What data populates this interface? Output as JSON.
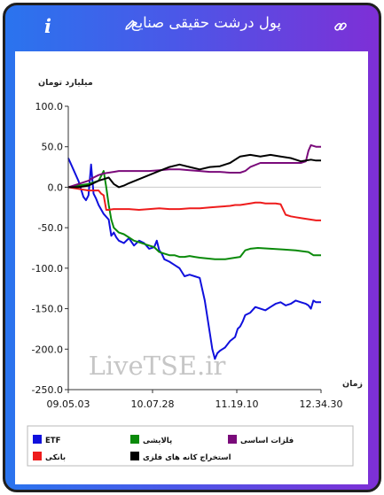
{
  "header": {
    "title": "پول درشت حقیقی صنایع",
    "info_glyph": "i",
    "edit_icon": "pencil-icon",
    "link_icon": "link-icon"
  },
  "chart_data": {
    "type": "line",
    "ylabel": "میلیارد تومان",
    "xlabel": "زمان",
    "ylim": [
      -250,
      100
    ],
    "yticks": [
      100.0,
      50.0,
      0.0,
      -50.0,
      -100.0,
      -150.0,
      -200.0,
      -250.0
    ],
    "ytick_labels": [
      "100.0",
      "50.0",
      "0.0",
      "-50.0",
      "-100.0",
      "-150.0",
      "-200.0",
      "-250.0"
    ],
    "xlim": [
      0,
      100
    ],
    "x_tick_labels": [
      "09.05.03",
      "10.07.28",
      "11.19.10",
      "12.34.30"
    ],
    "grid": false,
    "legend_position": "bottom",
    "watermark": "LiveTSE.ir",
    "series": [
      {
        "name": "ETF",
        "color": "#1010dd",
        "x": [
          0,
          2,
          4,
          6,
          7,
          8,
          9,
          10,
          11,
          12,
          14,
          16,
          17,
          18,
          19,
          20,
          22,
          24,
          26,
          28,
          30,
          32,
          34,
          35,
          36,
          37,
          38,
          40,
          42,
          44,
          46,
          48,
          50,
          52,
          54,
          56,
          57,
          58,
          59,
          60,
          61,
          62,
          64,
          66,
          67,
          68,
          69,
          70,
          72,
          74,
          76,
          78,
          80,
          82,
          84,
          86,
          88,
          90,
          92,
          94,
          95,
          96,
          97,
          98,
          100
        ],
        "y": [
          36,
          22,
          8,
          -12,
          -16,
          -10,
          28,
          -8,
          -14,
          -22,
          -33,
          -40,
          -60,
          -56,
          -62,
          -66,
          -69,
          -63,
          -72,
          -66,
          -69,
          -76,
          -74,
          -66,
          -78,
          -82,
          -89,
          -92,
          -96,
          -100,
          -110,
          -108,
          -110,
          -112,
          -140,
          -180,
          -200,
          -212,
          -205,
          -202,
          -200,
          -198,
          -190,
          -185,
          -175,
          -172,
          -166,
          -158,
          -155,
          -148,
          -150,
          -152,
          -148,
          -144,
          -142,
          -146,
          -144,
          -140,
          -142,
          -144,
          -146,
          -150,
          -140,
          -142,
          -142
        ]
      },
      {
        "name": "پالایشی",
        "color": "#0a8a0a",
        "x": [
          0,
          4,
          8,
          12,
          13,
          14,
          15,
          16,
          17,
          18,
          20,
          22,
          24,
          26,
          28,
          30,
          32,
          34,
          36,
          38,
          40,
          42,
          44,
          46,
          48,
          50,
          52,
          55,
          58,
          60,
          62,
          64,
          66,
          68,
          70,
          72,
          75,
          80,
          85,
          90,
          95,
          97,
          100
        ],
        "y": [
          0,
          2,
          4,
          8,
          14,
          20,
          0,
          -22,
          -40,
          -50,
          -56,
          -58,
          -62,
          -66,
          -68,
          -70,
          -72,
          -74,
          -80,
          -82,
          -84,
          -84,
          -86,
          -86,
          -85,
          -86,
          -87,
          -88,
          -89,
          -89,
          -89,
          -88,
          -87,
          -86,
          -78,
          -76,
          -75,
          -76,
          -77,
          -78,
          -80,
          -84,
          -84
        ]
      },
      {
        "name": "فلزات اساسی",
        "color": "#7a0a7a",
        "x": [
          0,
          4,
          8,
          10,
          12,
          14,
          16,
          18,
          20,
          24,
          28,
          32,
          36,
          40,
          44,
          48,
          52,
          56,
          60,
          64,
          68,
          70,
          72,
          76,
          80,
          84,
          88,
          92,
          94,
          95,
          96,
          98,
          100
        ],
        "y": [
          0,
          4,
          8,
          12,
          15,
          17,
          18,
          19,
          20,
          20,
          20,
          20,
          21,
          22,
          22,
          21,
          20,
          19,
          19,
          18,
          18,
          20,
          25,
          30,
          30,
          30,
          30,
          30,
          32,
          45,
          52,
          50,
          50
        ]
      },
      {
        "name": "بانکی",
        "color": "#ee1c1c",
        "x": [
          0,
          4,
          8,
          12,
          13,
          14,
          15,
          16,
          18,
          20,
          24,
          28,
          32,
          36,
          40,
          44,
          48,
          52,
          56,
          60,
          64,
          66,
          68,
          70,
          72,
          74,
          76,
          78,
          80,
          82,
          84,
          86,
          88,
          90,
          92,
          94,
          96,
          98,
          100
        ],
        "y": [
          0,
          -2,
          -4,
          -4,
          -8,
          -10,
          -28,
          -28,
          -27,
          -27,
          -27,
          -28,
          -27,
          -26,
          -27,
          -27,
          -26,
          -26,
          -25,
          -24,
          -23,
          -22,
          -22,
          -21,
          -20,
          -19,
          -19,
          -20,
          -20,
          -20,
          -21,
          -34,
          -36,
          -37,
          -38,
          -39,
          -40,
          -41,
          -41
        ]
      },
      {
        "name": "استخراج کانه های فلزی",
        "color": "#000000",
        "x": [
          0,
          4,
          8,
          10,
          12,
          14,
          16,
          18,
          20,
          22,
          24,
          28,
          32,
          36,
          40,
          44,
          48,
          52,
          56,
          60,
          64,
          68,
          72,
          76,
          80,
          84,
          88,
          90,
          92,
          94,
          96,
          98,
          100
        ],
        "y": [
          0,
          0,
          2,
          5,
          8,
          10,
          12,
          4,
          0,
          2,
          5,
          10,
          15,
          20,
          25,
          28,
          25,
          22,
          25,
          26,
          30,
          38,
          40,
          38,
          40,
          38,
          36,
          34,
          32,
          33,
          34,
          33,
          33
        ]
      }
    ]
  }
}
